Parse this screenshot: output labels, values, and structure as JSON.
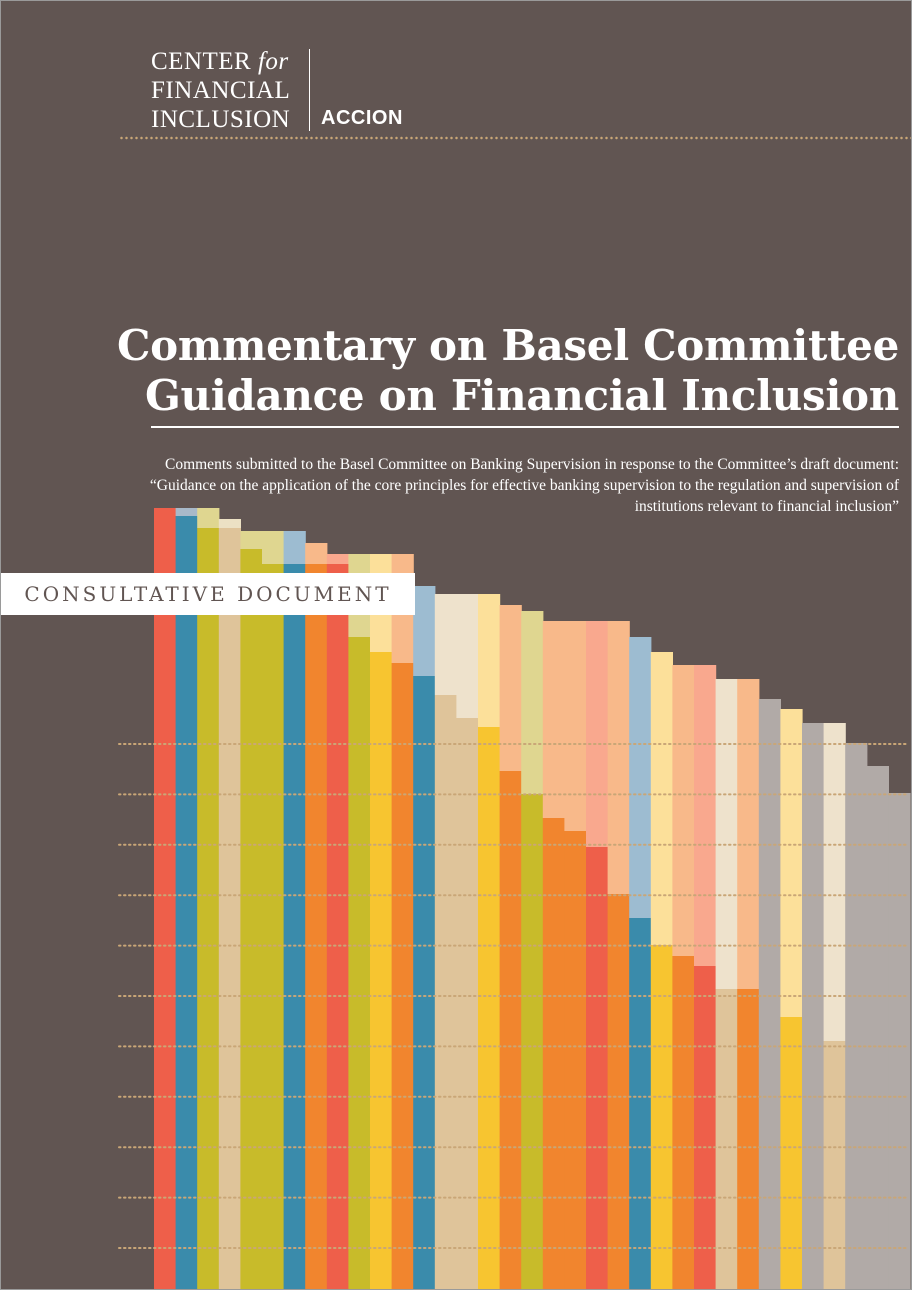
{
  "header": {
    "logo_line1": "CENTER",
    "logo_for": "for",
    "logo_line2": "FINANCIAL",
    "logo_line3": "INCLUSION",
    "partner_logo": "ACCION"
  },
  "document": {
    "title_line1": "Commentary on Basel Committee",
    "title_line2": "Guidance on Financial Inclusion",
    "subtitle": "Comments submitted to the Basel Committee on Banking Supervision in response to the Committee’s draft document: “Guidance on the application of the core principles for effective banking supervision to the regulation and supervision of institutions relevant to financial inclusion”",
    "badge": "CONSULTATIVE DOCUMENT"
  },
  "colors": {
    "background": "#615552",
    "text": "#ffffff",
    "dots": "#c9a677",
    "palette": [
      "#ee5f4a",
      "#3a8bab",
      "#c8bb2a",
      "#dfc49a",
      "#f1852e",
      "#f7c530",
      "#9dbcd1",
      "#eee2cc",
      "#fce09a",
      "#f8b98a",
      "#f9a88e",
      "#dfd690",
      "#ece1c4",
      "#a8b9c9",
      "#b1aaa7"
    ]
  },
  "decoration": {
    "type": "stepped color columns",
    "column_colors": [
      [
        "#ee5f4a"
      ],
      [
        "#a8b9c9",
        "#3a8bab"
      ],
      [
        "#dfd690",
        "#c8bb2a"
      ],
      [
        "#ece1c4",
        "#dfc49a"
      ],
      [
        "#dfd690",
        "#c8bb2a"
      ],
      [
        "#dfd690",
        "#c8bb2a"
      ],
      [
        "#9dbcd1",
        "#3a8bab"
      ],
      [
        "#f8b98a",
        "#f1852e"
      ],
      [
        "#f9a88e",
        "#ee5f4a"
      ],
      [
        "#dfd690",
        "#c8bb2a"
      ],
      [
        "#fce09a",
        "#f7c530"
      ],
      [
        "#f8b98a",
        "#f1852e"
      ],
      [
        "#9dbcd1",
        "#3a8bab"
      ],
      [
        "#eee2cc",
        "#dfc49a"
      ],
      [
        "#eee2cc",
        "#dfc49a"
      ],
      [
        "#fce09a",
        "#f7c530"
      ],
      [
        "#f8b98a",
        "#f1852e"
      ],
      [
        "#dfd690",
        "#c8bb2a"
      ],
      [
        "#f8b98a",
        "#f1852e"
      ],
      [
        "#f8b98a",
        "#f1852e"
      ],
      [
        "#f9a88e",
        "#ee5f4a"
      ],
      [
        "#f8b98a",
        "#f1852e"
      ],
      [
        "#9dbcd1",
        "#3a8bab"
      ],
      [
        "#fce09a",
        "#f7c530"
      ],
      [
        "#f8b98a",
        "#f1852e"
      ],
      [
        "#f9a88e",
        "#ee5f4a"
      ],
      [
        "#eee2cc",
        "#dfc49a"
      ],
      [
        "#f8b98a",
        "#f1852e"
      ],
      [
        "#b1aaa7"
      ],
      [
        "#fce09a",
        "#f7c530"
      ],
      [
        "#b1aaa7"
      ],
      [
        "#eee2cc",
        "#dfc49a"
      ],
      [
        "#b1aaa7"
      ],
      [
        "#b1aaa7"
      ],
      [
        "#b1aaa7"
      ]
    ]
  }
}
